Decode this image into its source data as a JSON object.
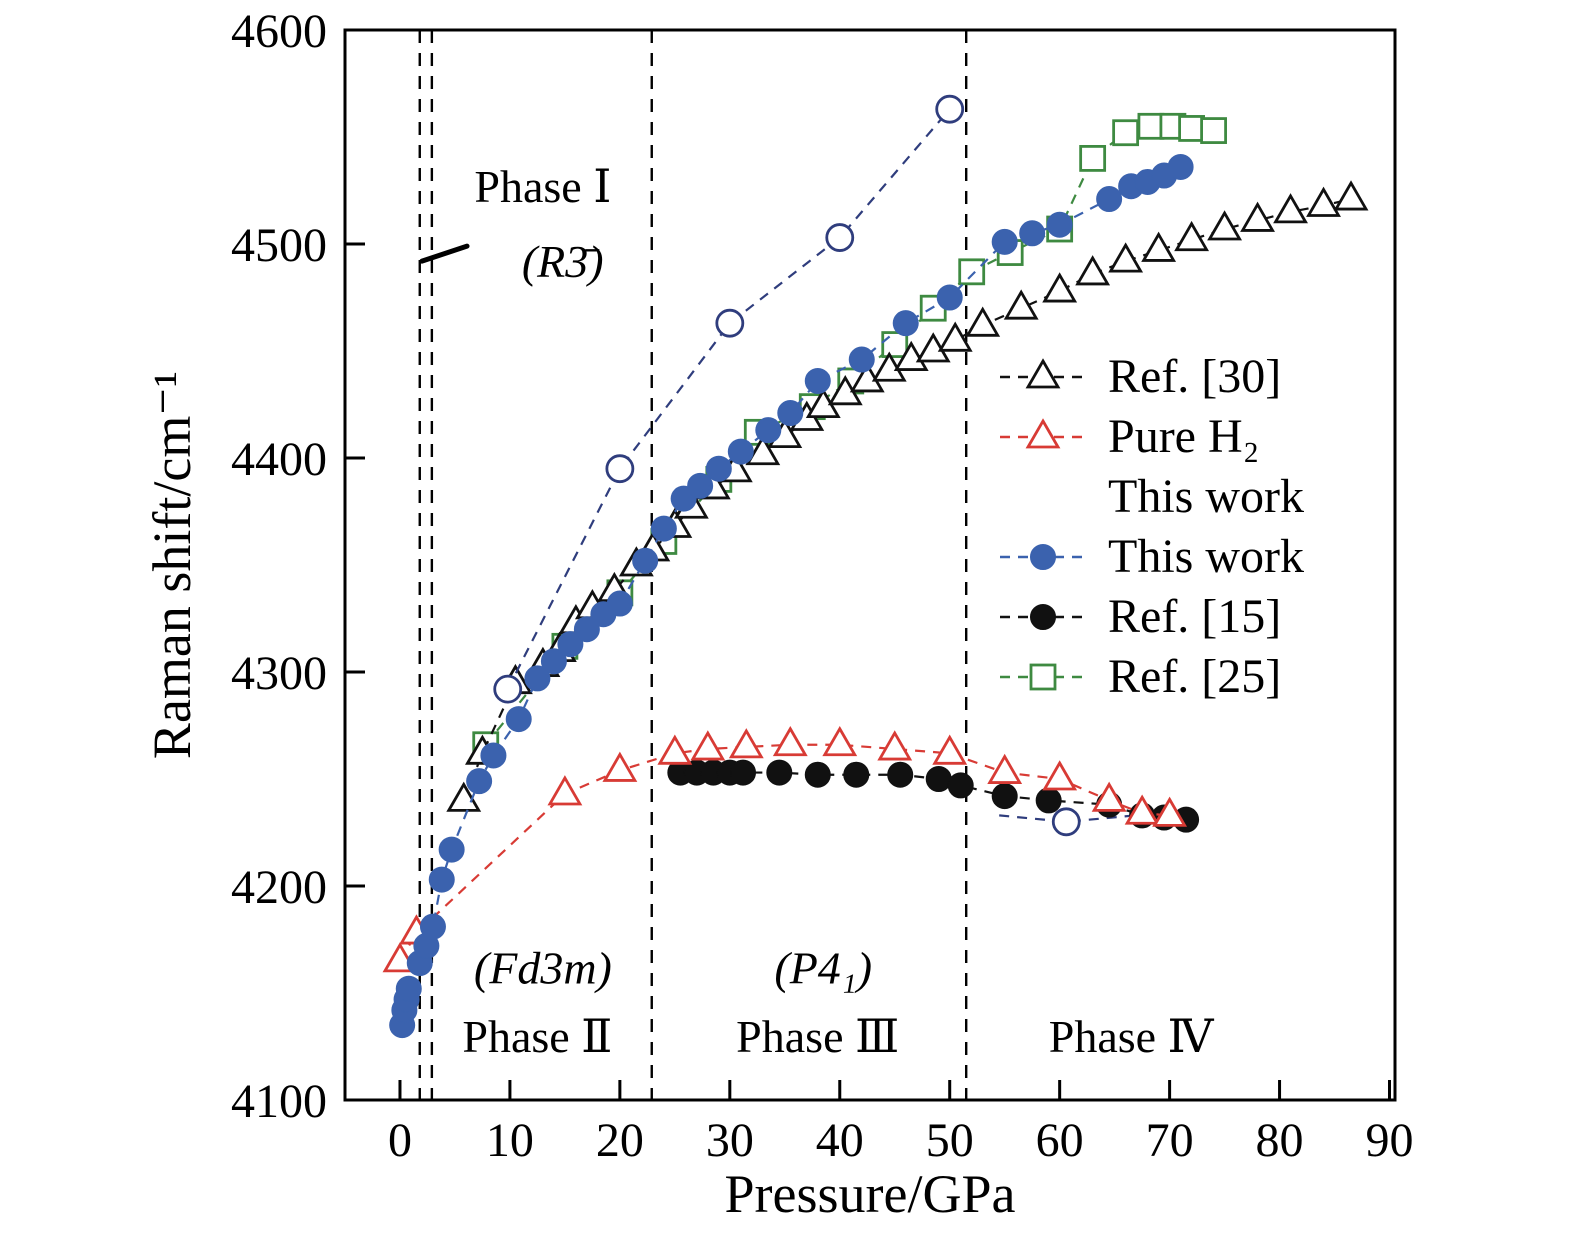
{
  "chart_data": {
    "type": "scatter",
    "title": "",
    "xlabel": "Pressure/GPa",
    "ylabel": "Raman shift/cm⁻¹",
    "xlim": [
      -5,
      90.5
    ],
    "ylim": [
      4100,
      4600
    ],
    "xticks": [
      0,
      10,
      20,
      30,
      40,
      50,
      60,
      70,
      80,
      90
    ],
    "yticks": [
      4100,
      4200,
      4300,
      4400,
      4500,
      4600
    ],
    "grid": false,
    "phase_boundaries_gpa": [
      1.8,
      2.9,
      22.9,
      51.5
    ],
    "leader_line": {
      "x1": 2.0,
      "y1": 4492,
      "x2": 6.1,
      "y2": 4499
    },
    "annotations": [
      {
        "text": "Phase Ⅰ",
        "x": 13,
        "y": 4527,
        "italic": false,
        "size": 50
      },
      {
        "text": "(R3̄)",
        "x": 14.8,
        "y": 4492,
        "italic": true,
        "size": 50
      },
      {
        "text": "(Fd3m)",
        "x": 13,
        "y": 4162,
        "italic": true,
        "size": 47
      },
      {
        "text": "Phase Ⅱ",
        "x": 12.5,
        "y": 4130,
        "italic": false,
        "size": 47
      },
      {
        "text": "(P4₁)",
        "x": 38.5,
        "y": 4162,
        "italic": true,
        "size": 47
      },
      {
        "text": "Phase Ⅲ",
        "x": 38,
        "y": 4130,
        "italic": false,
        "size": 47
      },
      {
        "text": "Phase Ⅳ",
        "x": 66.5,
        "y": 4130,
        "italic": false,
        "size": 47
      }
    ],
    "series": [
      {
        "name": "Ref. [25]",
        "marker": "square-open",
        "color": "#3e8a41",
        "line": "dashed",
        "points": [
          [
            7.8,
            4266
          ],
          [
            15,
            4312
          ],
          [
            20,
            4337
          ],
          [
            24,
            4361
          ],
          [
            29,
            4390
          ],
          [
            32.5,
            4412
          ],
          [
            37.5,
            4424
          ],
          [
            41,
            4436
          ],
          [
            45,
            4453
          ],
          [
            48.5,
            4470
          ],
          [
            52,
            4487
          ],
          [
            55.5,
            4496
          ],
          [
            60,
            4507
          ],
          [
            63,
            4540
          ],
          [
            66,
            4552
          ],
          [
            68.3,
            4555
          ],
          [
            70.3,
            4555
          ],
          [
            72,
            4554
          ],
          [
            74,
            4553
          ]
        ]
      },
      {
        "name": "Ref. [30]",
        "marker": "triangle-open",
        "color": "#111111",
        "line": "dashed",
        "points": [
          [
            5.8,
            4240
          ],
          [
            7.5,
            4262
          ],
          [
            10.5,
            4295
          ],
          [
            13,
            4303
          ],
          [
            14.5,
            4310
          ],
          [
            16,
            4323
          ],
          [
            17.5,
            4330
          ],
          [
            19.5,
            4338
          ],
          [
            21.5,
            4350
          ],
          [
            23,
            4357
          ],
          [
            25,
            4368
          ],
          [
            26.5,
            4377
          ],
          [
            28.5,
            4386
          ],
          [
            30.5,
            4394
          ],
          [
            33,
            4402
          ],
          [
            35,
            4410
          ],
          [
            37,
            4418
          ],
          [
            38.5,
            4424
          ],
          [
            40.5,
            4430
          ],
          [
            42.5,
            4436
          ],
          [
            44.5,
            4441
          ],
          [
            46.5,
            4446
          ],
          [
            48.5,
            4450
          ],
          [
            50.5,
            4455
          ],
          [
            53,
            4462
          ],
          [
            56.5,
            4470
          ],
          [
            60,
            4478
          ],
          [
            63,
            4486
          ],
          [
            66,
            4492
          ],
          [
            69,
            4497
          ],
          [
            72,
            4502
          ],
          [
            75,
            4507
          ],
          [
            78,
            4511
          ],
          [
            81,
            4515
          ],
          [
            84,
            4518
          ],
          [
            86.5,
            4521
          ]
        ]
      },
      {
        "name": "This work (H2 in mixture, open)",
        "marker": "circle-open",
        "color": "#2f3d7d",
        "line": "dashed",
        "points": [
          [
            9.8,
            4292
          ],
          [
            20,
            4395
          ],
          [
            30,
            4463
          ],
          [
            40,
            4503
          ],
          [
            50,
            4563
          ]
        ]
      },
      {
        "name": "This work (open, low branch)",
        "marker": "circle-open",
        "color": "#2f3d7d",
        "line": "dashed",
        "marker_indices": [
          1
        ],
        "points": [
          [
            54.5,
            4233
          ],
          [
            60.6,
            4230
          ],
          [
            69,
            4234
          ]
        ]
      },
      {
        "name": "Ref. [15]",
        "marker": "circle-filled",
        "color": "#111111",
        "line": "dashed",
        "points": [
          [
            25.5,
            4253
          ],
          [
            27,
            4253
          ],
          [
            28.5,
            4253
          ],
          [
            30,
            4253
          ],
          [
            31.2,
            4253
          ],
          [
            34.5,
            4253
          ],
          [
            38,
            4252
          ],
          [
            41.5,
            4252
          ],
          [
            45.5,
            4252
          ],
          [
            49,
            4250
          ],
          [
            51,
            4247
          ],
          [
            55,
            4242
          ],
          [
            59,
            4240
          ],
          [
            64.5,
            4238
          ],
          [
            67.5,
            4233
          ],
          [
            69.5,
            4232
          ],
          [
            71.5,
            4231
          ]
        ]
      },
      {
        "name": "Pure H₂ This work",
        "marker": "triangle-open",
        "color": "#d83b35",
        "line": "dashed",
        "points": [
          [
            0,
            4165
          ],
          [
            1.5,
            4178
          ],
          [
            15,
            4243
          ],
          [
            20,
            4254
          ],
          [
            25,
            4262
          ],
          [
            28,
            4264
          ],
          [
            31.5,
            4265
          ],
          [
            35.5,
            4266
          ],
          [
            40,
            4266
          ],
          [
            45,
            4264
          ],
          [
            50,
            4262
          ],
          [
            55,
            4253
          ],
          [
            60,
            4250
          ],
          [
            64.5,
            4240
          ],
          [
            67.5,
            4234
          ],
          [
            70,
            4233
          ]
        ]
      },
      {
        "name": "This work (filled)",
        "marker": "circle-filled",
        "color": "#3b62ae",
        "line": "dashed",
        "points": [
          [
            0.2,
            4135
          ],
          [
            0.4,
            4142
          ],
          [
            0.6,
            4147
          ],
          [
            0.8,
            4152
          ],
          [
            1.8,
            4164
          ],
          [
            2.4,
            4172
          ],
          [
            3.0,
            4181
          ],
          [
            3.8,
            4203
          ],
          [
            4.7,
            4217
          ],
          [
            7.2,
            4249
          ],
          [
            8.5,
            4261
          ],
          [
            10.8,
            4278
          ],
          [
            12.5,
            4297
          ],
          [
            14,
            4305
          ],
          [
            15.5,
            4313
          ],
          [
            17,
            4320
          ],
          [
            18.5,
            4327
          ],
          [
            20,
            4332
          ],
          [
            22.3,
            4352
          ],
          [
            24,
            4367
          ],
          [
            25.8,
            4381
          ],
          [
            27.3,
            4387
          ],
          [
            29,
            4395
          ],
          [
            31,
            4403
          ],
          [
            33.5,
            4413
          ],
          [
            35.5,
            4421
          ],
          [
            38,
            4436
          ],
          [
            42,
            4446
          ],
          [
            46,
            4463
          ],
          [
            50,
            4475
          ],
          [
            55,
            4501
          ],
          [
            57.5,
            4505
          ],
          [
            60,
            4509
          ],
          [
            64.5,
            4521
          ],
          [
            66.5,
            4527
          ],
          [
            68,
            4529
          ],
          [
            69.5,
            4532
          ],
          [
            71,
            4536
          ]
        ]
      }
    ],
    "legend": {
      "position": "middle-right",
      "entries": [
        {
          "marker": "triangle-open",
          "color": "#111111",
          "line": true,
          "label": "Ref. [30]"
        },
        {
          "marker": "triangle-open",
          "color": "#d83b35",
          "line": true,
          "label": "Pure H₂"
        },
        {
          "marker": "none",
          "color": "#000000",
          "line": false,
          "label": "This work"
        },
        {
          "marker": "circle-filled",
          "color": "#3b62ae",
          "line": true,
          "label": "This work"
        },
        {
          "marker": "circle-filled",
          "color": "#111111",
          "line": true,
          "label": "Ref. [15]"
        },
        {
          "marker": "square-open",
          "color": "#3e8a41",
          "line": true,
          "label": "Ref. [25]"
        }
      ]
    }
  }
}
